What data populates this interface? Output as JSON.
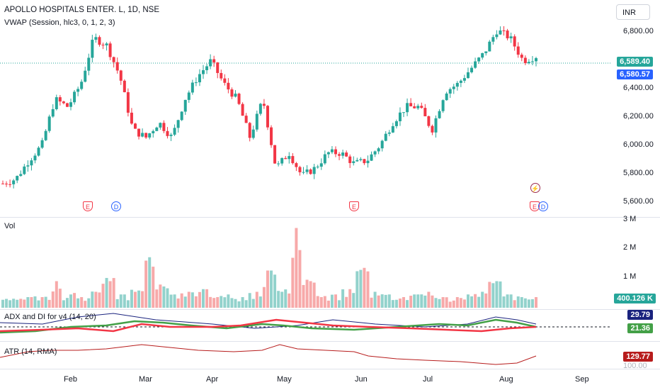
{
  "header": {
    "symbol_title": "APOLLO HOSPITALS ENTER. L, 1D, NSE",
    "vwap_title": "VWAP (Session, hlc3, 0, 1, 2, 3)",
    "currency": "INR"
  },
  "price_axis": {
    "ticks": [
      "6,800.00",
      "6,400.00",
      "6,200.00",
      "6,000.00",
      "5,800.00",
      "5,600.00"
    ],
    "last_price": "6,589.40",
    "vwap_value": "6,580.57"
  },
  "volume": {
    "title": "Vol",
    "ticks": [
      "3 M",
      "2 M",
      "1 M"
    ],
    "last": "400.126 K"
  },
  "adx": {
    "title": "ADX and DI for v4 (14, 20)",
    "val_top": "29.79",
    "val_bottom": "21.36"
  },
  "atr": {
    "title": "ATR (14, RMA)",
    "value": "129.77",
    "tick_partial": "100.00"
  },
  "time_axis": [
    "Feb",
    "Mar",
    "Apr",
    "May",
    "Jun",
    "Jul",
    "Aug",
    "Sep"
  ],
  "markers": {
    "earnings": "E",
    "dividend": "D",
    "split": "⚡"
  },
  "colors": {
    "up": "#26a69a",
    "down": "#f23645",
    "vwap": "#2962ff",
    "grid": "#e0e3eb"
  },
  "chart_data": [
    {
      "type": "candlestick",
      "series": [
        {
          "name": "APOLLO HOSPITALS ENTER. L",
          "approx_close_path": [
            5750,
            5780,
            5900,
            6000,
            6300,
            6250,
            6400,
            6700,
            6650,
            6450,
            6100,
            6050,
            6150,
            6050,
            6300,
            6450,
            6550,
            6400,
            6300,
            6050,
            6300,
            5850,
            5950,
            5800,
            5850,
            5950,
            5950,
            5880,
            5900,
            6000,
            6150,
            6250,
            6250,
            6100,
            6350,
            6400,
            6500,
            6600,
            6750,
            6700,
            6550,
            6580
          ]
        }
      ],
      "x_ticks": [
        "Feb",
        "Mar",
        "Apr",
        "May",
        "Jun",
        "Jul",
        "Aug",
        "Sep"
      ],
      "ylim": [
        5560,
        6900
      ]
    },
    {
      "type": "bar",
      "title": "Vol",
      "values_millions": [
        0.3,
        0.3,
        0.4,
        0.4,
        1.0,
        0.5,
        0.4,
        0.6,
        1.0,
        0.5,
        0.6,
        1.9,
        0.8,
        0.5,
        0.6,
        0.7,
        0.4,
        0.5,
        0.4,
        0.6,
        1.4,
        0.6,
        3.0,
        1.0,
        0.4,
        0.5,
        0.7,
        1.5,
        0.6,
        0.5,
        0.4,
        0.5,
        0.6,
        0.4,
        0.4,
        0.5,
        0.6,
        1.0,
        0.5,
        0.4,
        0.4
      ],
      "ylim_millions": [
        0,
        3.2
      ]
    },
    {
      "type": "line",
      "title": "ADX and DI for v4 (14, 20)",
      "series": [
        {
          "name": "ADX",
          "last": 29.79
        },
        {
          "name": "DI",
          "last": 21.36
        }
      ]
    },
    {
      "type": "line",
      "title": "ATR (14, RMA)",
      "series": [
        {
          "name": "ATR",
          "last": 129.77
        }
      ]
    }
  ]
}
